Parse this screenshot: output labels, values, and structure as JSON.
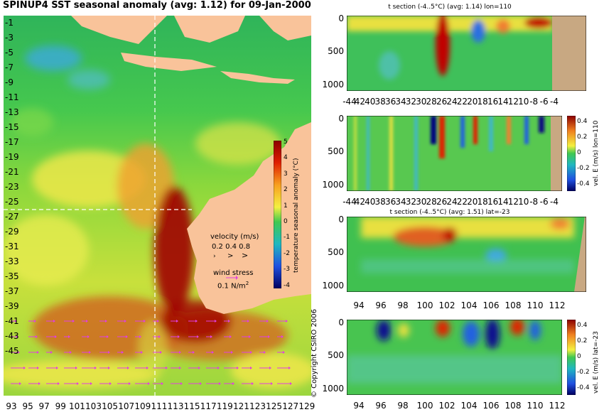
{
  "main_title": "SPINUP4 SST seasonal anomaly (avg: 1.12) for 09-Jan-2000",
  "copyright": "© Copyright CSIRO 2006",
  "map": {
    "y_ticks": [
      "-1",
      "-3",
      "-5",
      "-7",
      "-9",
      "-11",
      "-13",
      "-15",
      "-17",
      "-19",
      "-21",
      "-23",
      "-25",
      "-27",
      "-29",
      "-31",
      "-33",
      "-35",
      "-37",
      "-39",
      "-41",
      "-43",
      "-45"
    ],
    "x_ticks": [
      "93",
      "95",
      "97",
      "99",
      "101",
      "103",
      "105",
      "107",
      "109",
      "111",
      "113",
      "115",
      "117",
      "119",
      "121",
      "123",
      "125",
      "127",
      "129"
    ],
    "colorbar": {
      "label": "temperature seasonal anomaly (°C)",
      "ticks": [
        "5",
        "4",
        "3",
        "2",
        "1",
        "0",
        "-1",
        "-2",
        "-3",
        "-4"
      ]
    },
    "velocity_label": "velocity (m/s)",
    "velocity_values": "0.2 0.4 0.8",
    "wind_label": "wind stress",
    "wind_value": "0.1 N/m",
    "wind_unit_sup": "2",
    "section_lon": 110,
    "section_lat": -23
  },
  "panels": [
    {
      "title": "t section (-4..5°C) (avg: 1.14) lon=110",
      "y_ticks": [
        "0",
        "500",
        "1000"
      ],
      "x_ticks": [
        "-44",
        "42",
        "40",
        "38",
        "36",
        "34",
        "32",
        "30",
        "28",
        "26",
        "24",
        "22",
        "20",
        "18",
        "16",
        "14",
        "12",
        "10",
        "-8",
        "-6",
        "-4"
      ]
    },
    {
      "title": "",
      "y_ticks": [
        "0",
        "500",
        "1000"
      ],
      "x_ticks": [
        "-44",
        "42",
        "40",
        "38",
        "36",
        "34",
        "32",
        "30",
        "28",
        "26",
        "24",
        "22",
        "20",
        "18",
        "16",
        "14",
        "12",
        "10",
        "-8",
        "-6",
        "-4"
      ],
      "colorbar_label": "vel. E (m/s) lon=110",
      "colorbar_ticks": [
        "0.4",
        "0.2",
        "0",
        "-0.2",
        "-0.4"
      ]
    },
    {
      "title": "t section (-4..5°C) (avg: 1.51) lat=-23",
      "y_ticks": [
        "0",
        "500",
        "1000"
      ],
      "x_ticks": [
        "94",
        "96",
        "98",
        "100",
        "102",
        "104",
        "106",
        "108",
        "110",
        "112"
      ]
    },
    {
      "title": "",
      "y_ticks": [
        "0",
        "500",
        "1000"
      ],
      "x_ticks": [
        "94",
        "96",
        "98",
        "100",
        "102",
        "104",
        "106",
        "108",
        "110",
        "112"
      ],
      "colorbar_label": "vel. E (m/s) lat=-23",
      "colorbar_ticks": [
        "0.4",
        "0.2",
        "0",
        "-0.2",
        "-0.4"
      ]
    }
  ],
  "chart_data": [
    {
      "type": "heatmap",
      "title": "SPINUP4 SST seasonal anomaly (avg: 1.12) for 09-Jan-2000",
      "xlabel": "",
      "ylabel": "",
      "x_range": [
        93,
        130
      ],
      "y_range": [
        -45,
        0
      ],
      "colorbar_range": [
        -4,
        5
      ],
      "colorbar_label": "temperature seasonal anomaly (°C)"
    },
    {
      "type": "heatmap",
      "title": "t section (-4..5°C) (avg: 1.14) lon=110",
      "x_range": [
        -45,
        -3
      ],
      "y_range": [
        1050,
        0
      ],
      "y_ticks": [
        0,
        500,
        1000
      ]
    },
    {
      "type": "heatmap",
      "title": "",
      "x_range": [
        -45,
        -3
      ],
      "y_range": [
        1050,
        0
      ],
      "colorbar_label": "vel. E (m/s) lon=110",
      "colorbar_range": [
        -0.4,
        0.4
      ]
    },
    {
      "type": "heatmap",
      "title": "t section (-4..5°C) (avg: 1.51) lat=-23",
      "x_range": [
        93,
        114
      ],
      "y_range": [
        1050,
        0
      ],
      "y_ticks": [
        0,
        500,
        1000
      ]
    },
    {
      "type": "heatmap",
      "title": "",
      "x_range": [
        93,
        114
      ],
      "y_range": [
        1050,
        0
      ],
      "colorbar_label": "vel. E (m/s) lat=-23",
      "colorbar_range": [
        -0.4,
        0.4
      ]
    }
  ],
  "colors": {
    "land": "#f9c39a",
    "land_section": "#c8a882",
    "ocean_green": "#3cc85a",
    "warm_yellow": "#f4e84a",
    "hot_red": "#b40000",
    "cool_blue": "#2a7ae8",
    "guide_dash": "#ffffff",
    "vector": "#e040e0"
  }
}
